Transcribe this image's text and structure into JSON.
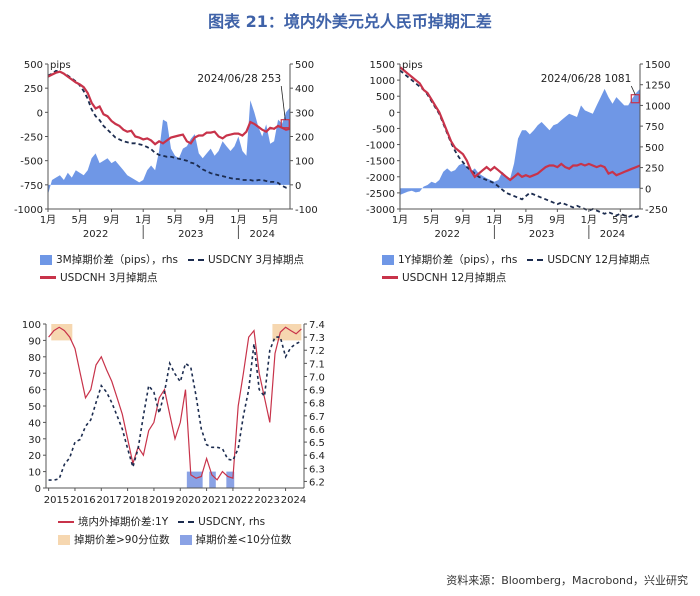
{
  "page": {
    "title": "图表 21：境内外美元兑人民币掉期汇差",
    "source": "资料来源：Bloomberg，Macrobond，兴业研究"
  },
  "colors": {
    "area_blue": "#6f97e6",
    "cnh_red": "#c8334a",
    "cny_navy": "#1c2c4f",
    "high_fill": "#f6d7b0",
    "low_fill": "#8aa2e5",
    "annot_box": "#c8334a"
  },
  "chart_data": [
    {
      "id": "chart1",
      "type": "area",
      "y_left_label": "pips",
      "ylim": [
        -1000,
        500
      ],
      "y2lim": [
        -100,
        500
      ],
      "y_ticks": [
        "500",
        "250",
        "0",
        "-250",
        "-500",
        "-750",
        "-1000"
      ],
      "y2_ticks": [
        "500",
        "400",
        "300",
        "200",
        "100",
        "0",
        "-100"
      ],
      "x_ticks": [
        "1月",
        "5月",
        "9月",
        "1月",
        "5月",
        "9月",
        "1月",
        "5月"
      ],
      "x_years": [
        "2022",
        "2023",
        "2024"
      ],
      "annotation": {
        "text": "2024/06/28 253",
        "x": 29.9,
        "y": 253
      },
      "legend": {
        "area": "3M掉期价差（pips），rhs",
        "cny": "USDCNY 3月掉期点",
        "cnh": "USDCNH 3月掉期点"
      },
      "x": [
        0,
        0.5,
        1,
        1.5,
        2,
        2.5,
        3,
        3.5,
        4,
        4.5,
        5,
        5.5,
        6,
        6.5,
        7,
        7.5,
        8,
        8.5,
        9,
        9.5,
        10,
        10.5,
        11,
        11.5,
        12,
        12.5,
        13,
        13.5,
        14,
        14.5,
        15,
        15.5,
        16,
        16.5,
        17,
        17.5,
        18,
        18.5,
        19,
        19.5,
        20,
        20.5,
        21,
        21.5,
        22,
        22.5,
        23,
        23.5,
        24,
        24.5,
        25,
        25.5,
        26,
        26.5,
        27,
        27.5,
        28,
        28.5,
        29,
        29.5,
        30,
        30.5
      ],
      "area": [
        -40,
        20,
        30,
        40,
        20,
        50,
        30,
        60,
        50,
        40,
        60,
        110,
        130,
        90,
        100,
        110,
        90,
        100,
        80,
        60,
        40,
        30,
        20,
        10,
        20,
        60,
        80,
        60,
        140,
        270,
        260,
        150,
        120,
        110,
        150,
        160,
        190,
        210,
        130,
        110,
        130,
        150,
        120,
        140,
        180,
        160,
        140,
        160,
        200,
        140,
        120,
        350,
        300,
        240,
        200,
        250,
        170,
        180,
        270,
        253,
        300,
        320
      ],
      "usdcnh": [
        370,
        390,
        410,
        420,
        400,
        370,
        340,
        310,
        290,
        260,
        200,
        100,
        40,
        60,
        -20,
        -40,
        -90,
        -120,
        -140,
        -180,
        -200,
        -190,
        -250,
        -260,
        -280,
        -270,
        -290,
        -330,
        -300,
        -320,
        -290,
        -260,
        -250,
        -240,
        -230,
        -300,
        -320,
        -260,
        -240,
        -240,
        -210,
        -210,
        -200,
        -250,
        -270,
        -240,
        -230,
        -220,
        -220,
        -240,
        -200,
        -100,
        -120,
        -150,
        -180,
        -200,
        -160,
        -170,
        -140,
        -160,
        -180,
        -170
      ],
      "usdcny": [
        380,
        400,
        430,
        420,
        400,
        380,
        350,
        320,
        280,
        220,
        140,
        30,
        -40,
        -80,
        -140,
        -180,
        -220,
        -260,
        -280,
        -300,
        -310,
        -320,
        -320,
        -330,
        -340,
        -360,
        -380,
        -420,
        -440,
        -450,
        -460,
        -460,
        -470,
        -480,
        -490,
        -500,
        -520,
        -530,
        -560,
        -590,
        -610,
        -630,
        -640,
        -650,
        -660,
        -670,
        -680,
        -690,
        -690,
        -700,
        -700,
        -700,
        -710,
        -700,
        -700,
        -710,
        -720,
        -720,
        -730,
        -760,
        -780,
        -770
      ]
    },
    {
      "id": "chart2",
      "type": "area",
      "y_left_label": "pips",
      "ylim": [
        -3000,
        1500
      ],
      "y2lim": [
        -250,
        1500
      ],
      "y_ticks": [
        "1500",
        "1000",
        "500",
        "0",
        "-500",
        "-1000",
        "-1500",
        "-2000",
        "-2500",
        "-3000"
      ],
      "y2_ticks": [
        "1500",
        "1250",
        "1000",
        "750",
        "500",
        "250",
        "0",
        "-250"
      ],
      "x_ticks": [
        "1月",
        "5月",
        "9月",
        "1月",
        "5月",
        "9月",
        "1月",
        "5月"
      ],
      "x_years": [
        "2022",
        "2023",
        "2024"
      ],
      "annotation": {
        "text": "2024/06/28 1081",
        "x": 29.9,
        "y": 1081
      },
      "legend": {
        "area": "1Y掉期价差（pips），rhs",
        "cny": "USDCNY 12月掉期点",
        "cnh": "USDCNH 12月掉期点"
      },
      "x": [
        0,
        0.5,
        1,
        1.5,
        2,
        2.5,
        3,
        3.5,
        4,
        4.5,
        5,
        5.5,
        6,
        6.5,
        7,
        7.5,
        8,
        8.5,
        9,
        9.5,
        10,
        10.5,
        11,
        11.5,
        12,
        12.5,
        13,
        13.5,
        14,
        14.5,
        15,
        15.5,
        16,
        16.5,
        17,
        17.5,
        18,
        18.5,
        19,
        19.5,
        20,
        20.5,
        21,
        21.5,
        22,
        22.5,
        23,
        23.5,
        24,
        24.5,
        25,
        25.5,
        26,
        26.5,
        27,
        27.5,
        28,
        28.5,
        29,
        29.5,
        30,
        30.5
      ],
      "area": [
        -80,
        -60,
        -40,
        -30,
        -50,
        -40,
        20,
        40,
        80,
        60,
        100,
        200,
        240,
        200,
        220,
        280,
        300,
        260,
        200,
        240,
        180,
        150,
        120,
        100,
        80,
        100,
        200,
        150,
        120,
        300,
        600,
        700,
        700,
        650,
        700,
        760,
        800,
        750,
        700,
        760,
        780,
        820,
        860,
        900,
        880,
        860,
        1000,
        940,
        920,
        900,
        1000,
        1100,
        1200,
        1100,
        1020,
        1100,
        1050,
        1000,
        1000,
        1081,
        1150,
        1200
      ],
      "usdcnh": [
        1400,
        1300,
        1200,
        1100,
        1000,
        900,
        700,
        600,
        400,
        200,
        0,
        -300,
        -600,
        -900,
        -1100,
        -1200,
        -1300,
        -1500,
        -1800,
        -2000,
        -1900,
        -1800,
        -1700,
        -1800,
        -1700,
        -1800,
        -1900,
        -2000,
        -2100,
        -2000,
        -1900,
        -2000,
        -1950,
        -2000,
        -1950,
        -1900,
        -1800,
        -1700,
        -1650,
        -1650,
        -1700,
        -1600,
        -1700,
        -1750,
        -1650,
        -1650,
        -1600,
        -1650,
        -1600,
        -1650,
        -1700,
        -1650,
        -1700,
        -1900,
        -1850,
        -1950,
        -1900,
        -1850,
        -1800,
        -1750,
        -1700,
        -1650
      ],
      "usdcny": [
        1300,
        1200,
        1100,
        1000,
        900,
        800,
        700,
        550,
        350,
        150,
        -50,
        -350,
        -650,
        -950,
        -1200,
        -1400,
        -1550,
        -1700,
        -1800,
        -1900,
        -2000,
        -2050,
        -2100,
        -2150,
        -2200,
        -2300,
        -2400,
        -2500,
        -2550,
        -2600,
        -2650,
        -2700,
        -2600,
        -2500,
        -2550,
        -2600,
        -2650,
        -2700,
        -2750,
        -2800,
        -2850,
        -2800,
        -2850,
        -2900,
        -2950,
        -2900,
        -2950,
        -3000,
        -3050,
        -3000,
        -3050,
        -3100,
        -3150,
        -3100,
        -3150,
        -3200,
        -3150,
        -3200,
        -3250,
        -3200,
        -3250,
        -3200
      ]
    },
    {
      "id": "chart3",
      "type": "line",
      "ylim": [
        0,
        100
      ],
      "y2lim": [
        6.15,
        7.4
      ],
      "y_ticks": [
        "100",
        "90",
        "80",
        "70",
        "60",
        "50",
        "40",
        "30",
        "20",
        "10",
        "0"
      ],
      "y2_ticks": [
        "7.4",
        "7.3",
        "7.2",
        "7.1",
        "7.0",
        "6.9",
        "6.8",
        "6.7",
        "6.6",
        "6.5",
        "6.4",
        "6.3",
        "6.2"
      ],
      "x_ticks": [
        "2015",
        "2016",
        "2017",
        "2018",
        "2019",
        "2020",
        "2021",
        "2022",
        "2023",
        "2024"
      ],
      "legend": {
        "line": "境内外掉期价差:1Y",
        "cny": "USDCNY, rhs",
        "high": "掉期价差>90分位数",
        "low": "掉期价差<10分位数"
      },
      "high_bands": [
        [
          2015.1,
          2015.9
        ],
        [
          2023.5,
          2024.6
        ]
      ],
      "low_bands": [
        [
          2020.25,
          2020.85
        ],
        [
          2021.1,
          2021.35
        ],
        [
          2021.75,
          2022.05
        ]
      ],
      "x": [
        2015.0,
        2015.2,
        2015.4,
        2015.6,
        2015.8,
        2016.0,
        2016.2,
        2016.4,
        2016.6,
        2016.8,
        2017.0,
        2017.2,
        2017.4,
        2017.6,
        2017.8,
        2018.0,
        2018.2,
        2018.4,
        2018.6,
        2018.8,
        2019.0,
        2019.2,
        2019.4,
        2019.6,
        2019.8,
        2020.0,
        2020.2,
        2020.4,
        2020.6,
        2020.8,
        2021.0,
        2021.2,
        2021.4,
        2021.6,
        2021.8,
        2022.0,
        2022.2,
        2022.4,
        2022.6,
        2022.8,
        2023.0,
        2023.2,
        2023.4,
        2023.6,
        2023.8,
        2024.0,
        2024.2,
        2024.4,
        2024.6
      ],
      "spread": [
        92,
        96,
        98,
        96,
        92,
        85,
        70,
        55,
        60,
        75,
        80,
        72,
        65,
        55,
        45,
        30,
        15,
        25,
        20,
        35,
        40,
        55,
        60,
        45,
        30,
        40,
        60,
        8,
        6,
        7,
        18,
        8,
        5,
        10,
        7,
        6,
        50,
        70,
        92,
        96,
        70,
        55,
        40,
        82,
        95,
        98,
        96,
        94,
        97
      ],
      "usdcny": [
        6.21,
        6.21,
        6.22,
        6.33,
        6.38,
        6.5,
        6.52,
        6.62,
        6.67,
        6.8,
        6.93,
        6.88,
        6.8,
        6.7,
        6.6,
        6.45,
        6.31,
        6.45,
        6.7,
        6.93,
        6.88,
        6.72,
        6.88,
        7.1,
        7.02,
        6.96,
        7.1,
        7.07,
        6.85,
        6.6,
        6.48,
        6.46,
        6.46,
        6.45,
        6.37,
        6.36,
        6.45,
        6.7,
        6.9,
        7.25,
        6.9,
        6.85,
        7.2,
        7.3,
        7.3,
        7.15,
        7.22,
        7.25,
        7.27
      ]
    }
  ]
}
